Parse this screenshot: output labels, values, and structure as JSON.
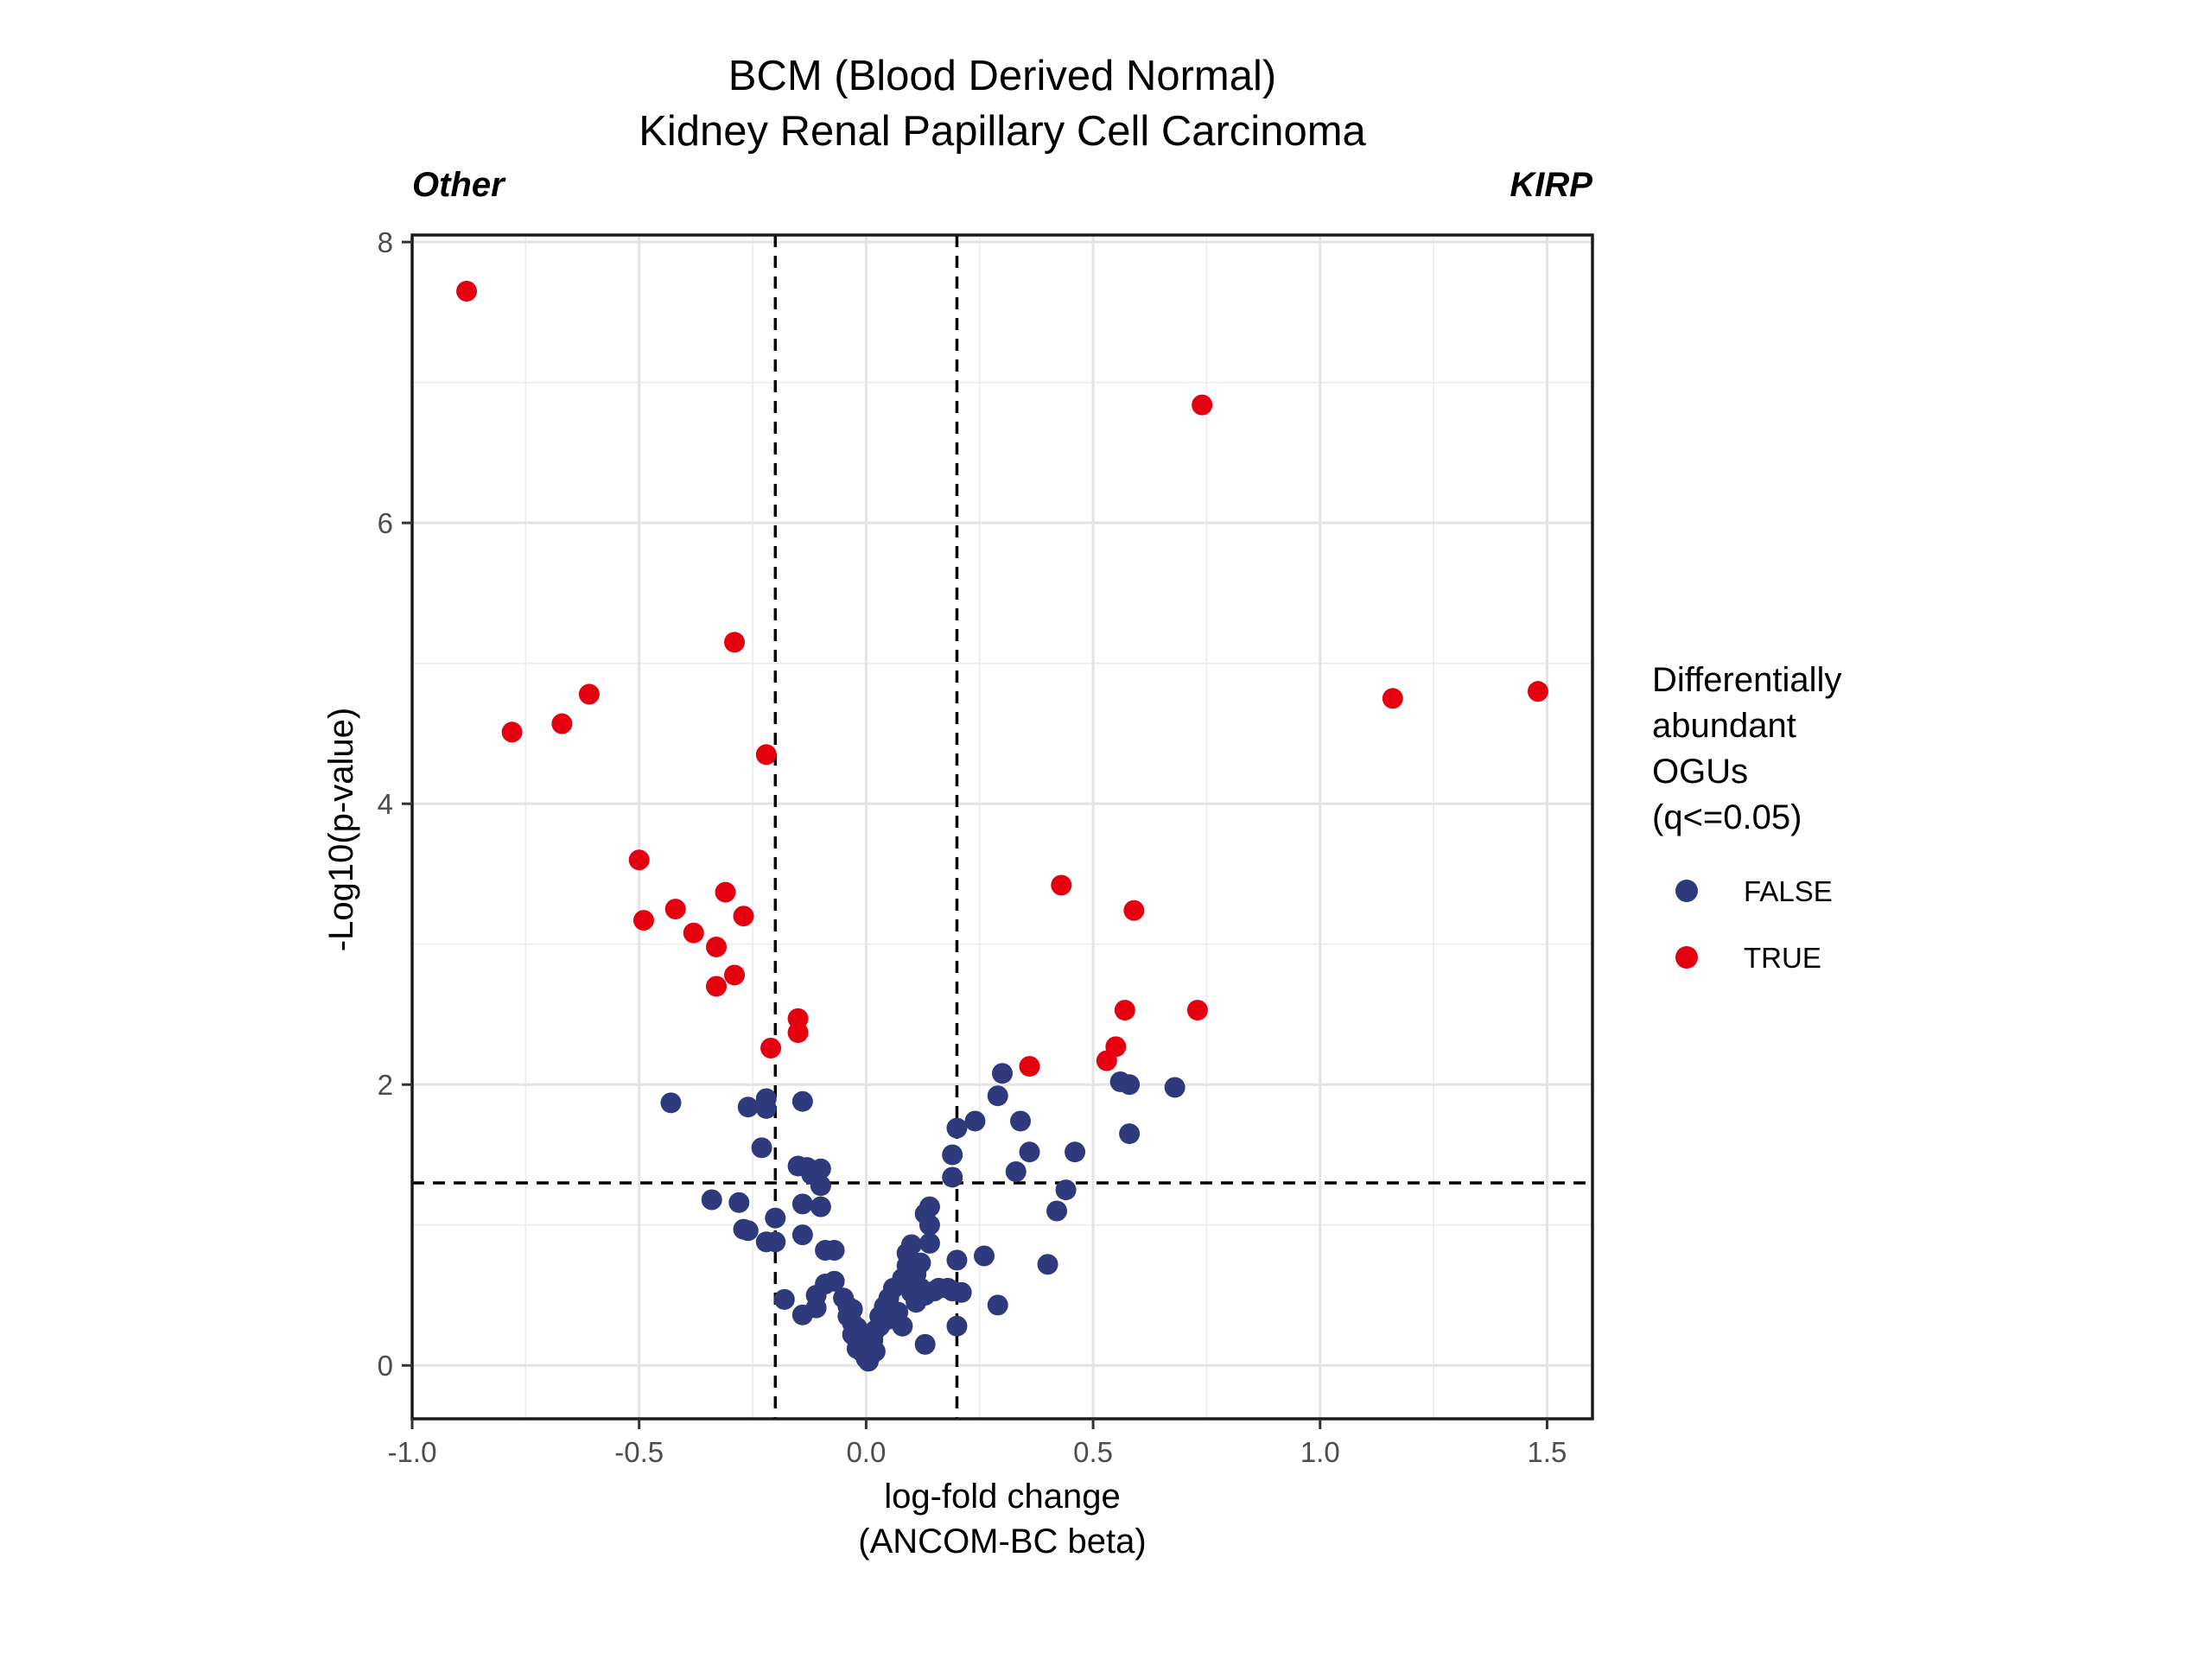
{
  "chart_data": {
    "type": "scatter",
    "title": "BCM (Blood Derived Normal)",
    "subtitle": "Kidney Renal Papillary Cell Carcinoma",
    "corner_left": "Other",
    "corner_right": "KIRP",
    "xlabel": [
      "log-fold change",
      "(ANCOM-BC beta)"
    ],
    "ylabel": "-Log10(p-value)",
    "xlim": [
      -1.0,
      1.6
    ],
    "ylim": [
      -0.38,
      8.05
    ],
    "x_ticks": [
      -1.0,
      -0.5,
      0.0,
      0.5,
      1.0,
      1.5
    ],
    "x_tick_labels": [
      "-1.0",
      "-0.5",
      "0.0",
      "0.5",
      "1.0",
      "1.5"
    ],
    "y_ticks": [
      0,
      2,
      4,
      6,
      8
    ],
    "y_tick_labels": [
      "0",
      "2",
      "4",
      "6",
      "8"
    ],
    "grid": true,
    "thresholds": {
      "x": [
        -0.2,
        0.2
      ],
      "y": 1.3
    },
    "legend": {
      "title": [
        "Differentially",
        "abundant",
        "OGUs",
        "(q<=0.05)"
      ],
      "placement": "right",
      "items": [
        {
          "label": "FALSE",
          "color": "#2e3a7c"
        },
        {
          "label": "TRUE",
          "color": "#e4000f"
        }
      ]
    },
    "series": [
      {
        "name": "FALSE",
        "color": "#2e3a7c",
        "points": [
          [
            -0.43,
            1.87
          ],
          [
            -0.34,
            1.18
          ],
          [
            -0.28,
            1.16
          ],
          [
            -0.27,
            0.97
          ],
          [
            -0.26,
            0.96
          ],
          [
            -0.26,
            1.84
          ],
          [
            -0.22,
            1.9
          ],
          [
            -0.22,
            1.83
          ],
          [
            -0.23,
            1.55
          ],
          [
            -0.22,
            0.88
          ],
          [
            -0.2,
            0.88
          ],
          [
            -0.2,
            1.05
          ],
          [
            -0.18,
            0.47
          ],
          [
            -0.14,
            1.88
          ],
          [
            -0.15,
            1.42
          ],
          [
            -0.13,
            1.41
          ],
          [
            -0.12,
            1.36
          ],
          [
            -0.1,
            1.4
          ],
          [
            -0.1,
            1.28
          ],
          [
            -0.14,
            1.15
          ],
          [
            -0.14,
            0.93
          ],
          [
            -0.1,
            1.13
          ],
          [
            -0.09,
            0.82
          ],
          [
            -0.07,
            0.82
          ],
          [
            -0.14,
            0.36
          ],
          [
            -0.11,
            0.5
          ],
          [
            -0.11,
            0.41
          ],
          [
            -0.09,
            0.58
          ],
          [
            -0.07,
            0.6
          ],
          [
            -0.05,
            0.48
          ],
          [
            -0.04,
            0.42
          ],
          [
            -0.04,
            0.35
          ],
          [
            -0.03,
            0.4
          ],
          [
            -0.03,
            0.3
          ],
          [
            -0.03,
            0.22
          ],
          [
            -0.02,
            0.27
          ],
          [
            -0.02,
            0.18
          ],
          [
            -0.02,
            0.12
          ],
          [
            -0.01,
            0.2
          ],
          [
            -0.01,
            0.1
          ],
          [
            -0.005,
            0.14
          ],
          [
            0.0,
            0.08
          ],
          [
            0.0,
            0.05
          ],
          [
            0.005,
            0.03
          ],
          [
            0.01,
            0.07
          ],
          [
            0.01,
            0.12
          ],
          [
            0.015,
            0.18
          ],
          [
            0.02,
            0.1
          ],
          [
            0.02,
            0.25
          ],
          [
            0.03,
            0.35
          ],
          [
            0.03,
            0.28
          ],
          [
            0.04,
            0.42
          ],
          [
            0.05,
            0.33
          ],
          [
            0.05,
            0.48
          ],
          [
            0.06,
            0.55
          ],
          [
            0.07,
            0.38
          ],
          [
            0.08,
            0.28
          ],
          [
            0.08,
            0.62
          ],
          [
            0.09,
            0.71
          ],
          [
            0.09,
            0.8
          ],
          [
            0.1,
            0.86
          ],
          [
            0.1,
            0.52
          ],
          [
            0.11,
            0.65
          ],
          [
            0.11,
            0.45
          ],
          [
            0.12,
            0.55
          ],
          [
            0.12,
            0.73
          ],
          [
            0.13,
            0.5
          ],
          [
            0.13,
            1.08
          ],
          [
            0.14,
            1.13
          ],
          [
            0.14,
            1.0
          ],
          [
            0.14,
            0.87
          ],
          [
            0.15,
            0.53
          ],
          [
            0.16,
            0.55
          ],
          [
            0.18,
            0.55
          ],
          [
            0.19,
            0.53
          ],
          [
            0.2,
            0.75
          ],
          [
            0.21,
            0.52
          ],
          [
            0.2,
            0.28
          ],
          [
            0.13,
            0.15
          ],
          [
            0.19,
            1.34
          ],
          [
            0.19,
            1.5
          ],
          [
            0.2,
            1.69
          ],
          [
            0.24,
            1.74
          ],
          [
            0.26,
            0.78
          ],
          [
            0.29,
            0.43
          ],
          [
            0.29,
            1.92
          ],
          [
            0.3,
            2.08
          ],
          [
            0.33,
            1.38
          ],
          [
            0.34,
            1.74
          ],
          [
            0.36,
            1.52
          ],
          [
            0.4,
            0.72
          ],
          [
            0.42,
            1.1
          ],
          [
            0.44,
            1.25
          ],
          [
            0.46,
            1.52
          ],
          [
            0.56,
            2.02
          ],
          [
            0.58,
            2.0
          ],
          [
            0.58,
            1.65
          ],
          [
            0.68,
            1.98
          ]
        ]
      },
      {
        "name": "TRUE",
        "color": "#e4000f",
        "points": [
          [
            -0.88,
            7.65
          ],
          [
            -0.78,
            4.51
          ],
          [
            -0.67,
            4.57
          ],
          [
            -0.61,
            4.78
          ],
          [
            -0.5,
            3.6
          ],
          [
            -0.49,
            3.17
          ],
          [
            -0.42,
            3.25
          ],
          [
            -0.38,
            3.08
          ],
          [
            -0.33,
            2.98
          ],
          [
            -0.33,
            2.7
          ],
          [
            -0.31,
            3.37
          ],
          [
            -0.29,
            2.78
          ],
          [
            -0.29,
            5.15
          ],
          [
            -0.27,
            3.2
          ],
          [
            -0.22,
            4.35
          ],
          [
            -0.21,
            2.26
          ],
          [
            -0.15,
            2.37
          ],
          [
            -0.15,
            2.47
          ],
          [
            0.36,
            2.13
          ],
          [
            0.43,
            3.42
          ],
          [
            0.53,
            2.17
          ],
          [
            0.55,
            2.27
          ],
          [
            0.57,
            2.53
          ],
          [
            0.59,
            3.24
          ],
          [
            0.73,
            2.53
          ],
          [
            0.74,
            6.84
          ],
          [
            1.16,
            4.75
          ],
          [
            1.48,
            4.8
          ]
        ]
      }
    ]
  }
}
